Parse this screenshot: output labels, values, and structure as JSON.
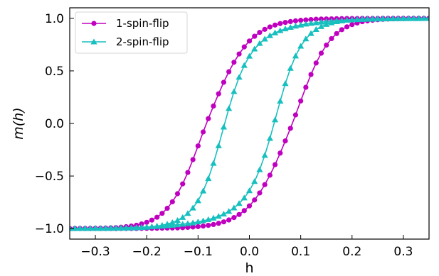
{
  "chart_data": {
    "type": "line",
    "title": "",
    "xlabel": "h",
    "ylabel": "m(h)",
    "xlim": [
      -0.35,
      0.35
    ],
    "ylim": [
      -1.1,
      1.1
    ],
    "xticks": [
      -0.3,
      -0.2,
      -0.1,
      0.0,
      0.1,
      0.2,
      0.3
    ],
    "xtick_labels": [
      "−0.3",
      "−0.2",
      "−0.1",
      "0.0",
      "0.1",
      "0.2",
      "0.3"
    ],
    "yticks": [
      -1.0,
      -0.5,
      0.0,
      0.5,
      1.0
    ],
    "ytick_labels": [
      "−1.0",
      "−0.5",
      "0.0",
      "0.5",
      "1.0"
    ],
    "grid": false,
    "legend_position": "top-left",
    "x": [
      -0.35,
      -0.34,
      -0.33,
      -0.32,
      -0.31,
      -0.3,
      -0.29,
      -0.28,
      -0.27,
      -0.26,
      -0.25,
      -0.24,
      -0.23,
      -0.22,
      -0.21,
      -0.2,
      -0.19,
      -0.18,
      -0.17,
      -0.16,
      -0.15,
      -0.14,
      -0.13,
      -0.12,
      -0.11,
      -0.1,
      -0.09,
      -0.08,
      -0.07,
      -0.06,
      -0.05,
      -0.04,
      -0.03,
      -0.02,
      -0.01,
      0.0,
      0.01,
      0.02,
      0.03,
      0.04,
      0.05,
      0.06,
      0.07,
      0.08,
      0.09,
      0.1,
      0.11,
      0.12,
      0.13,
      0.14,
      0.15,
      0.16,
      0.17,
      0.18,
      0.19,
      0.2,
      0.21,
      0.22,
      0.23,
      0.24,
      0.25,
      0.26,
      0.27,
      0.28,
      0.29,
      0.3,
      0.31,
      0.32,
      0.33,
      0.34,
      0.35
    ],
    "series": [
      {
        "name": "1-spin-flip",
        "color": "#bf00bf",
        "marker": "circle",
        "branches": [
          [
            -1.0,
            -0.999,
            -0.999,
            -0.999,
            -0.998,
            -0.997,
            -0.996,
            -0.995,
            -0.993,
            -0.991,
            -0.987,
            -0.982,
            -0.976,
            -0.968,
            -0.956,
            -0.94,
            -0.919,
            -0.892,
            -0.855,
            -0.807,
            -0.745,
            -0.668,
            -0.575,
            -0.466,
            -0.344,
            -0.214,
            -0.081,
            0.046,
            0.166,
            0.282,
            0.392,
            0.492,
            0.582,
            0.661,
            0.728,
            0.784,
            0.829,
            0.866,
            0.895,
            0.918,
            0.936,
            0.95,
            0.961,
            0.969,
            0.976,
            0.981,
            0.985,
            0.988,
            0.991,
            0.993,
            0.994,
            0.995,
            0.996,
            0.997,
            0.998,
            0.998,
            0.998,
            0.999,
            0.999,
            0.999,
            0.999,
            1.0,
            1.0,
            1.0,
            1.0,
            1.0,
            1.0,
            1.0,
            1.0,
            1.0,
            1.0
          ],
          [
            -1.0,
            -1.0,
            -1.0,
            -1.0,
            -1.0,
            -1.0,
            -1.0,
            -1.0,
            -1.0,
            -1.0,
            -0.999,
            -0.999,
            -0.999,
            -0.999,
            -0.998,
            -0.998,
            -0.998,
            -0.997,
            -0.996,
            -0.995,
            -0.994,
            -0.993,
            -0.991,
            -0.988,
            -0.985,
            -0.981,
            -0.976,
            -0.969,
            -0.961,
            -0.95,
            -0.936,
            -0.918,
            -0.895,
            -0.866,
            -0.829,
            -0.784,
            -0.728,
            -0.661,
            -0.582,
            -0.492,
            -0.392,
            -0.282,
            -0.166,
            -0.046,
            0.081,
            0.214,
            0.344,
            0.466,
            0.575,
            0.668,
            0.745,
            0.807,
            0.855,
            0.892,
            0.919,
            0.94,
            0.956,
            0.968,
            0.976,
            0.982,
            0.987,
            0.991,
            0.993,
            0.995,
            0.996,
            0.997,
            0.998,
            0.999,
            0.999,
            0.999,
            1.0
          ]
        ]
      },
      {
        "name": "2-spin-flip",
        "color": "#17bfbf",
        "marker": "triangle",
        "branches": [
          [
            -1.0,
            -0.999,
            -0.999,
            -0.999,
            -0.999,
            -0.999,
            -0.999,
            -0.998,
            -0.998,
            -0.997,
            -0.997,
            -0.996,
            -0.994,
            -0.993,
            -0.99,
            -0.987,
            -0.982,
            -0.976,
            -0.968,
            -0.957,
            -0.942,
            -0.922,
            -0.894,
            -0.856,
            -0.804,
            -0.735,
            -0.642,
            -0.524,
            -0.379,
            -0.212,
            -0.034,
            0.142,
            0.303,
            0.44,
            0.552,
            0.64,
            0.708,
            0.761,
            0.803,
            0.836,
            0.862,
            0.883,
            0.9,
            0.914,
            0.926,
            0.936,
            0.945,
            0.952,
            0.958,
            0.964,
            0.969,
            0.973,
            0.977,
            0.98,
            0.983,
            0.985,
            0.987,
            0.989,
            0.991,
            0.992,
            0.993,
            0.994,
            0.995,
            0.996,
            0.997,
            0.997,
            0.998,
            0.998,
            0.998,
            0.999,
            0.999
          ],
          [
            -0.999,
            -0.999,
            -0.998,
            -0.998,
            -0.998,
            -0.997,
            -0.997,
            -0.996,
            -0.995,
            -0.994,
            -0.993,
            -0.992,
            -0.991,
            -0.989,
            -0.987,
            -0.985,
            -0.983,
            -0.98,
            -0.977,
            -0.973,
            -0.969,
            -0.964,
            -0.958,
            -0.952,
            -0.945,
            -0.936,
            -0.926,
            -0.914,
            -0.9,
            -0.883,
            -0.862,
            -0.836,
            -0.803,
            -0.761,
            -0.708,
            -0.64,
            -0.552,
            -0.44,
            -0.303,
            -0.142,
            0.034,
            0.212,
            0.379,
            0.524,
            0.642,
            0.735,
            0.804,
            0.856,
            0.894,
            0.922,
            0.942,
            0.957,
            0.968,
            0.976,
            0.982,
            0.987,
            0.99,
            0.993,
            0.994,
            0.996,
            0.997,
            0.997,
            0.998,
            0.998,
            0.999,
            0.999,
            0.999,
            0.999,
            0.999,
            0.999,
            1.0
          ]
        ]
      }
    ]
  }
}
